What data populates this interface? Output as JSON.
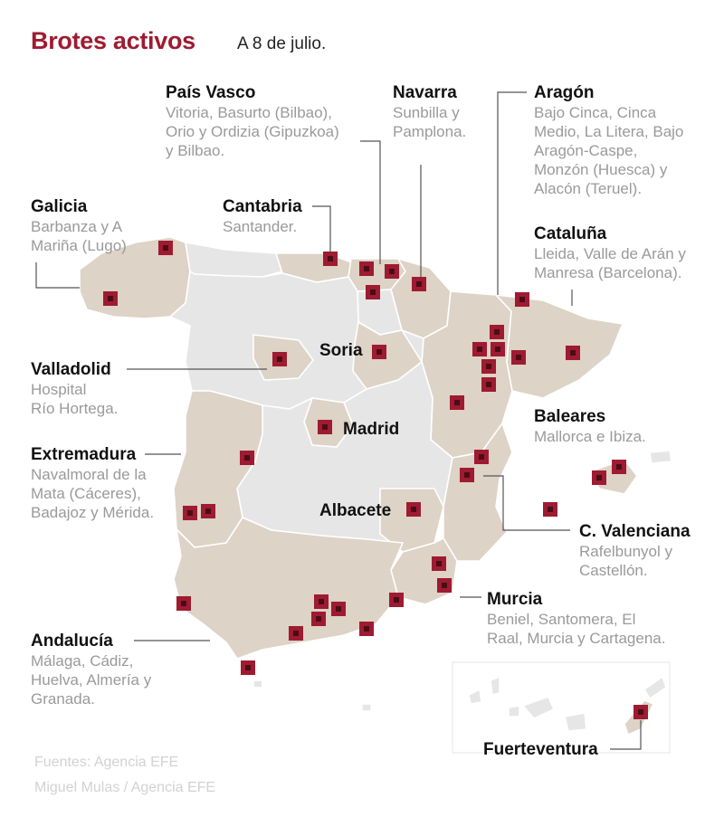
{
  "title": "Brotes activos",
  "subtitle": "A 8 de julio.",
  "regions": [
    {
      "id": "pais-vasco",
      "name": "País Vasco",
      "detail": "Vitoria, Basurto (Bilbao),\nOrio y Ordizia (Gipuzkoa)\ny Bilbao."
    },
    {
      "id": "navarra",
      "name": "Navarra",
      "detail": "Sunbilla y\nPamplona."
    },
    {
      "id": "aragon",
      "name": "Aragón",
      "detail": "Bajo Cinca, Cinca\nMedio, La Litera,  Bajo\nAragón-Caspe,\nMonzón (Huesca) y\nAlacón (Teruel)."
    },
    {
      "id": "galicia",
      "name": "Galicia",
      "detail": "Barbanza y A\nMariña (Lugo)"
    },
    {
      "id": "cantabria",
      "name": "Cantabria",
      "detail": "Santander."
    },
    {
      "id": "cataluna",
      "name": "Cataluña",
      "detail": "Lleida, Valle de Arán y\nManresa (Barcelona)."
    },
    {
      "id": "valladolid",
      "name": "Valladolid",
      "detail": "Hospital\nRío Hortega."
    },
    {
      "id": "baleares",
      "name": "Baleares",
      "detail": "Mallorca e Ibiza."
    },
    {
      "id": "extremadura",
      "name": "Extremadura",
      "detail": "Navalmoral de la\nMata (Cáceres),\nBadajoz y Mérida."
    },
    {
      "id": "c-valenciana",
      "name": "C. Valenciana",
      "detail": "Rafelbunyol y\nCastellón."
    },
    {
      "id": "murcia",
      "name": "Murcia",
      "detail": "Beniel, Santomera, El\nRaal, Murcia y Cartagena."
    },
    {
      "id": "andalucia",
      "name": "Andalucía",
      "detail": "Málaga, Cádiz,\nHuelva, Almería y\nGranada."
    },
    {
      "id": "fuerteventura",
      "name": "Fuerteventura",
      "detail": ""
    }
  ],
  "map_labels": {
    "soria": "Soria",
    "madrid": "Madrid",
    "albacete": "Albacete"
  },
  "credits": {
    "line1": "Fuentes: Agencia EFE",
    "line2": "Miguel Mulas / Agencia EFE"
  },
  "colors": {
    "outbreak_region": "#ddd3c6",
    "other_region": "#e6e6e6",
    "marker": "#9e1b32",
    "title": "#9e1b32"
  }
}
